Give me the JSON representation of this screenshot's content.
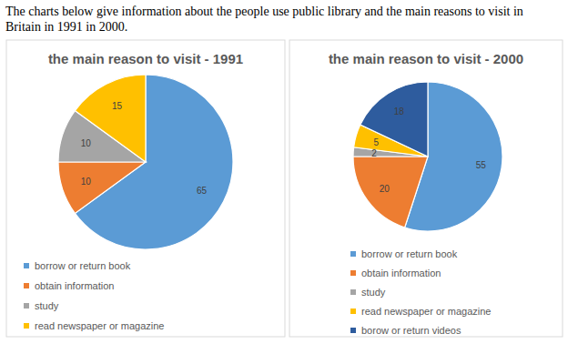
{
  "heading": "The charts below give information about the people use public library and the main reasons to visit in Britain in 1991 in 2000.",
  "chart_data": [
    {
      "type": "pie",
      "title": "the main reason to visit - 1991",
      "categories": [
        "borrow or return book",
        "obtain information",
        "study",
        "read newspaper or magazine"
      ],
      "values": [
        65,
        10,
        10,
        15
      ],
      "colors": [
        "#5b9bd5",
        "#ed7d31",
        "#a5a5a5",
        "#ffc000"
      ],
      "data_labels": true
    },
    {
      "type": "pie",
      "title": "the main reason to visit - 2000",
      "categories": [
        "borrow or return book",
        "obtain information",
        "study",
        "read newspaper or magazine",
        "borow or return videos"
      ],
      "values": [
        55,
        20,
        2,
        5,
        18
      ],
      "colors": [
        "#5b9bd5",
        "#ed7d31",
        "#a5a5a5",
        "#ffc000",
        "#2e5c9e"
      ],
      "data_labels": true
    }
  ]
}
